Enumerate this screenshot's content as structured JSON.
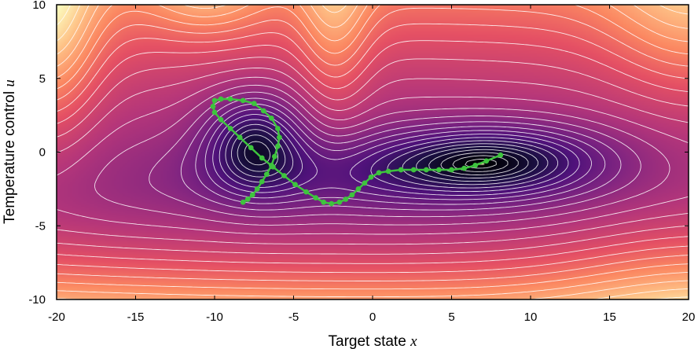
{
  "chart_data": {
    "type": "contour",
    "xlabel": "Target state",
    "xlabel_var": "x",
    "ylabel": "Temperature control",
    "ylabel_var": "u",
    "xlim": [
      -20,
      20
    ],
    "ylim": [
      -10,
      10
    ],
    "xticks": [
      -20,
      -15,
      -10,
      -5,
      0,
      5,
      10,
      15,
      20
    ],
    "yticks": [
      -10,
      -5,
      0,
      5,
      10
    ],
    "colormap": "magma",
    "contour_line_color": "#ffffff",
    "trajectory_color": "#3ec43e",
    "trajectory": [
      [
        -8.2,
        -3.4
      ],
      [
        -7.9,
        -3.2
      ],
      [
        -7.6,
        -2.9
      ],
      [
        -7.3,
        -2.5
      ],
      [
        -7.0,
        -2.0
      ],
      [
        -6.7,
        -1.5
      ],
      [
        -6.4,
        -0.9
      ],
      [
        -6.2,
        -0.3
      ],
      [
        -6.0,
        0.4
      ],
      [
        -5.9,
        1.0
      ],
      [
        -6.0,
        1.6
      ],
      [
        -6.4,
        2.3
      ],
      [
        -6.9,
        2.8
      ],
      [
        -7.5,
        3.3
      ],
      [
        -8.2,
        3.5
      ],
      [
        -9.0,
        3.6
      ],
      [
        -9.6,
        3.6
      ],
      [
        -10.0,
        3.5
      ],
      [
        -10.1,
        3.1
      ],
      [
        -10.0,
        2.7
      ],
      [
        -9.6,
        2.2
      ],
      [
        -9.0,
        1.6
      ],
      [
        -8.4,
        1.0
      ],
      [
        -7.7,
        0.3
      ],
      [
        -7.0,
        -0.4
      ],
      [
        -6.3,
        -1.0
      ],
      [
        -5.6,
        -1.6
      ],
      [
        -4.9,
        -2.2
      ],
      [
        -4.2,
        -2.7
      ],
      [
        -3.6,
        -3.1
      ],
      [
        -3.1,
        -3.4
      ],
      [
        -2.6,
        -3.5
      ],
      [
        -2.1,
        -3.4
      ],
      [
        -1.7,
        -3.2
      ],
      [
        -1.3,
        -2.9
      ],
      [
        -0.9,
        -2.5
      ],
      [
        -0.5,
        -2.1
      ],
      [
        -0.1,
        -1.7
      ],
      [
        0.4,
        -1.4
      ],
      [
        1.0,
        -1.3
      ],
      [
        1.8,
        -1.2
      ],
      [
        2.6,
        -1.2
      ],
      [
        3.4,
        -1.2
      ],
      [
        4.2,
        -1.2
      ],
      [
        5.0,
        -1.2
      ],
      [
        5.8,
        -1.1
      ],
      [
        6.5,
        -0.9
      ],
      [
        7.2,
        -0.6
      ],
      [
        8.1,
        -0.2
      ]
    ]
  }
}
